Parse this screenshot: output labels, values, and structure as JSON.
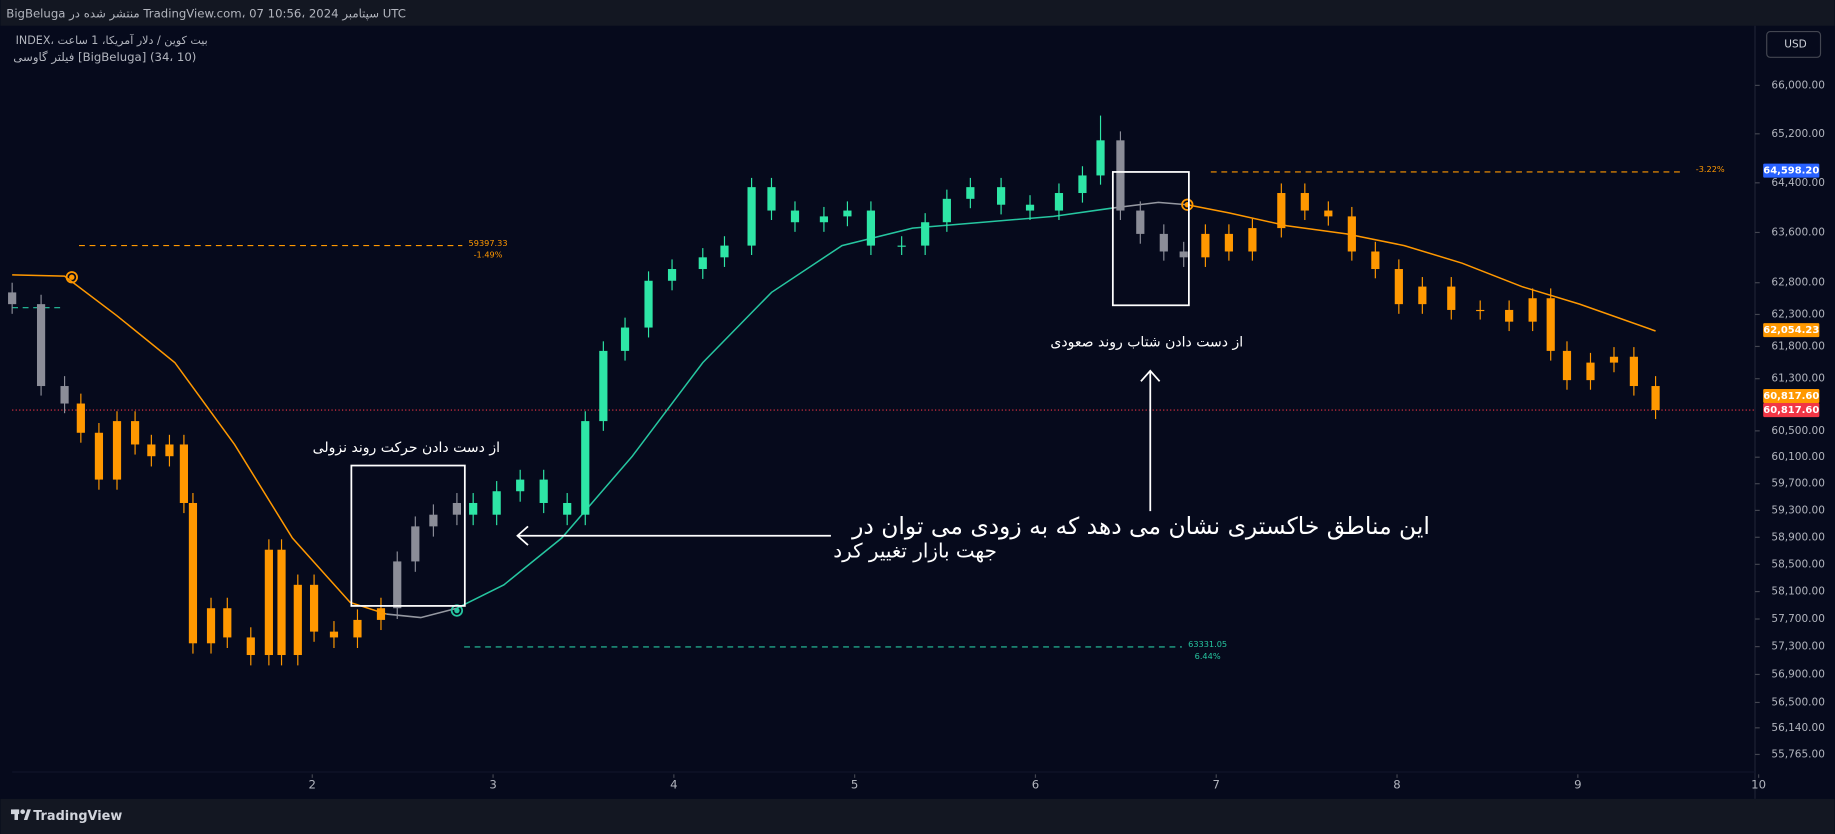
{
  "chart_data": {
    "type": "candlestick",
    "title": "BigBeluga منتشر شده در TradingView.com، 07 سپتامبر 2024 ،10:56 UTC",
    "legend_lines": [
      "INDEX، بیت کوین / دلار آمریکا، 1 ساعت",
      "فیلتر گاوسی [BigBeluga] (34، 10)"
    ],
    "currency": "USD",
    "brand": "TradingView",
    "log_scale": true,
    "grid": false,
    "xlim": [
      0.34,
      9.98
    ],
    "ylim": [
      55144,
      66940
    ],
    "xticks": [
      2,
      3,
      4,
      5,
      6,
      7,
      8,
      9,
      10
    ],
    "yticks": [
      {
        "value": 66000,
        "label": "66,000.00"
      },
      {
        "value": 65200,
        "label": "65,200.00"
      },
      {
        "value": 64400,
        "label": "64,400.00"
      },
      {
        "value": 63600,
        "label": "63,600.00"
      },
      {
        "value": 62800,
        "label": "62,800.00"
      },
      {
        "value": 62300,
        "label": "62,300.00"
      },
      {
        "value": 61800,
        "label": "61,800.00"
      },
      {
        "value": 61300,
        "label": "61,300.00"
      },
      {
        "value": 60500,
        "label": "60,500.00"
      },
      {
        "value": 60100,
        "label": "60,100.00"
      },
      {
        "value": 59700,
        "label": "59,700.00"
      },
      {
        "value": 59300,
        "label": "59,300.00"
      },
      {
        "value": 58900,
        "label": "58,900.00"
      },
      {
        "value": 58500,
        "label": "58,500.00"
      },
      {
        "value": 58100,
        "label": "58,100.00"
      },
      {
        "value": 57700,
        "label": "57,700.00"
      },
      {
        "value": 57300,
        "label": "57,300.00"
      },
      {
        "value": 56900,
        "label": "56,900.00"
      },
      {
        "value": 56500,
        "label": "56,500.00"
      },
      {
        "value": 56140,
        "label": "56,140.00"
      },
      {
        "value": 55765,
        "label": "55,765.00"
      }
    ],
    "candles": {
      "x": [
        0.34,
        0.5,
        0.63,
        0.72,
        0.82,
        0.92,
        1.02,
        1.11,
        1.21,
        1.29,
        1.34,
        1.44,
        1.53,
        1.66,
        1.76,
        1.83,
        1.92,
        2.01,
        2.12,
        2.25,
        2.38,
        2.47,
        2.57,
        2.67,
        2.8,
        2.89,
        3.02,
        3.15,
        3.28,
        3.41,
        3.51,
        3.61,
        3.73,
        3.86,
        3.99,
        4.16,
        4.28,
        4.43,
        4.54,
        4.67,
        4.83,
        4.96,
        5.09,
        5.26,
        5.39,
        5.51,
        5.64,
        5.81,
        5.97,
        6.13,
        6.26,
        6.36,
        6.47,
        6.58,
        6.71,
        6.82,
        6.94,
        7.07,
        7.2,
        7.36,
        7.49,
        7.62,
        7.75,
        7.88,
        8.01,
        8.14,
        8.3,
        8.46,
        8.62,
        8.75,
        8.85,
        8.94,
        9.07,
        9.2,
        9.31,
        9.43
      ],
      "open": [
        62647,
        62462,
        61187,
        60918,
        60471,
        59762,
        60649,
        60293,
        60115,
        60293,
        59411,
        57348,
        57857,
        57433,
        57179,
        58716,
        57179,
        58199,
        57517,
        57433,
        57687,
        57857,
        58543,
        59062,
        59236,
        59411,
        59236,
        59587,
        59762,
        59411,
        59236,
        60649,
        61731,
        62095,
        62831,
        63017,
        63203,
        63390,
        64330,
        63952,
        63764,
        63858,
        63952,
        63390,
        63390,
        63764,
        64141,
        64330,
        64046,
        63952,
        64235,
        64520,
        65093,
        63952,
        63577,
        63296,
        63203,
        63577,
        63296,
        63670,
        64235,
        63952,
        63858,
        63296,
        63017,
        62462,
        62739,
        62371,
        62371,
        62187,
        62555,
        61731,
        61278,
        61549,
        61640,
        61187
      ],
      "high": [
        62800,
        62610,
        61340,
        61070,
        60620,
        60800,
        60800,
        60440,
        60440,
        60440,
        59560,
        58010,
        58010,
        57580,
        58870,
        58870,
        58350,
        58350,
        57670,
        57840,
        58010,
        58690,
        59210,
        59390,
        59560,
        59560,
        59740,
        59910,
        59910,
        59560,
        60800,
        61880,
        62250,
        62980,
        63170,
        63350,
        63540,
        64480,
        64480,
        64100,
        64010,
        64100,
        64100,
        63540,
        63910,
        64290,
        64480,
        64480,
        64200,
        64390,
        64670,
        65500,
        65240,
        64100,
        63730,
        63450,
        63730,
        63730,
        63820,
        64390,
        64390,
        64100,
        64010,
        63450,
        63170,
        62890,
        62890,
        62520,
        62520,
        62710,
        62710,
        61880,
        61700,
        61790,
        61790,
        61340
      ],
      "low": [
        62310,
        61040,
        60770,
        60320,
        59610,
        59610,
        60140,
        59960,
        59960,
        59260,
        57200,
        57200,
        57280,
        57030,
        57030,
        57030,
        57030,
        57370,
        57280,
        57280,
        57540,
        57700,
        58390,
        58910,
        59080,
        59080,
        59080,
        59430,
        59260,
        59080,
        59080,
        60500,
        61580,
        61940,
        62680,
        62860,
        63050,
        63240,
        63800,
        63610,
        63610,
        63700,
        63240,
        63240,
        63240,
        63610,
        63990,
        63890,
        63800,
        63800,
        64080,
        64370,
        63800,
        63420,
        63150,
        63050,
        63050,
        63150,
        63150,
        63520,
        63800,
        63710,
        63150,
        62870,
        62310,
        62310,
        62220,
        62220,
        62040,
        62040,
        61580,
        61130,
        61130,
        61400,
        61040,
        60680
      ],
      "close": [
        62462,
        61187,
        60918,
        60471,
        59762,
        60649,
        60293,
        60115,
        60293,
        59411,
        57348,
        57857,
        57433,
        57179,
        58716,
        57179,
        58199,
        57517,
        57433,
        57687,
        57857,
        58543,
        59062,
        59236,
        59411,
        59236,
        59587,
        59762,
        59411,
        59236,
        60649,
        61731,
        62095,
        62831,
        63017,
        63203,
        63390,
        64330,
        63952,
        63764,
        63858,
        63952,
        63390,
        63390,
        63764,
        64141,
        64330,
        64046,
        63952,
        64235,
        64520,
        65093,
        63952,
        63577,
        63296,
        63203,
        63577,
        63296,
        63670,
        64235,
        63952,
        63858,
        63296,
        63017,
        62462,
        62739,
        62371,
        62371,
        62187,
        62555,
        61731,
        61278,
        61549,
        61640,
        61187,
        60817.6
      ],
      "colors": [
        "#8b8d98",
        "#8b8d98",
        "#8b8d98",
        "#ff9800",
        "#ff9800",
        "#ff9800",
        "#ff9800",
        "#ff9800",
        "#ff9800",
        "#ff9800",
        "#ff9800",
        "#ff9800",
        "#ff9800",
        "#ff9800",
        "#ff9800",
        "#ff9800",
        "#ff9800",
        "#ff9800",
        "#ff9800",
        "#ff9800",
        "#ff9800",
        "#8b8d98",
        "#8b8d98",
        "#8b8d98",
        "#8b8d98",
        "#2ee6a6",
        "#2ee6a6",
        "#2ee6a6",
        "#2ee6a6",
        "#2ee6a6",
        "#2ee6a6",
        "#2ee6a6",
        "#2ee6a6",
        "#2ee6a6",
        "#2ee6a6",
        "#2ee6a6",
        "#2ee6a6",
        "#2ee6a6",
        "#2ee6a6",
        "#2ee6a6",
        "#2ee6a6",
        "#2ee6a6",
        "#2ee6a6",
        "#2ee6a6",
        "#2ee6a6",
        "#2ee6a6",
        "#2ee6a6",
        "#2ee6a6",
        "#2ee6a6",
        "#2ee6a6",
        "#2ee6a6",
        "#2ee6a6",
        "#8b8d98",
        "#8b8d98",
        "#8b8d98",
        "#8b8d98",
        "#ff9800",
        "#ff9800",
        "#ff9800",
        "#ff9800",
        "#ff9800",
        "#ff9800",
        "#ff9800",
        "#ff9800",
        "#ff9800",
        "#ff9800",
        "#ff9800",
        "#ff9800",
        "#ff9800",
        "#ff9800",
        "#ff9800",
        "#ff9800",
        "#ff9800",
        "#ff9800",
        "#ff9800",
        "#ff9800"
      ]
    },
    "filter_lines": [
      {
        "color": "#ff9800",
        "x": [
          0.34,
          0.63,
          0.92,
          1.24,
          1.57,
          1.89,
          2.21,
          2.41
        ],
        "values": [
          62924,
          62905,
          62279,
          61549,
          60293,
          58889,
          57941,
          57772
        ]
      },
      {
        "color": "#9598a1",
        "x": [
          2.41,
          2.6,
          2.8
        ],
        "values": [
          57772,
          57721,
          57857
        ]
      },
      {
        "color": "#26c6a0",
        "x": [
          2.8,
          3.06,
          3.38,
          3.77,
          4.16,
          4.54,
          4.93,
          5.32,
          5.71,
          6.1,
          6.42
        ],
        "values": [
          57857,
          58199,
          58889,
          60115,
          61549,
          62647,
          63390,
          63670,
          63764,
          63858,
          63990
        ]
      },
      {
        "color": "#9598a1",
        "x": [
          6.42,
          6.68,
          6.84
        ],
        "values": [
          63990,
          64084,
          64046
        ]
      },
      {
        "color": "#ff9800",
        "x": [
          6.84,
          7.07,
          7.39,
          7.72,
          8.04,
          8.36,
          8.69,
          9.01,
          9.43
        ],
        "values": [
          64046,
          63914,
          63708,
          63577,
          63390,
          63110,
          62739,
          62462,
          62041
        ]
      }
    ],
    "levels": [
      {
        "value": 63390,
        "x": [
          0.71,
          2.83
        ],
        "color": "#ff9800",
        "labels": [
          "59397.33",
          "-1.49%"
        ]
      },
      {
        "value": 62407,
        "x": [
          0.34,
          0.63
        ],
        "color": "#26c6a0",
        "labels": []
      },
      {
        "value": 64577,
        "x": [
          6.97,
          9.59
        ],
        "color": "#ff9800",
        "labels": [
          "-3.22%"
        ]
      },
      {
        "value": 57296,
        "x": [
          2.84,
          6.81
        ],
        "color": "#26c6a0",
        "labels": [
          "63331.05",
          "6.44%"
        ]
      }
    ],
    "markers": [
      {
        "x": 0.67,
        "value": 62887,
        "color": "#ff9800"
      },
      {
        "x": 2.8,
        "value": 57823,
        "color": "#26c6a0"
      },
      {
        "x": 6.84,
        "value": 64046,
        "color": "#ff9800"
      }
    ],
    "price_line": {
      "value": 60817.6,
      "color": "#f23645"
    },
    "price_tags": [
      {
        "value": 64598.2,
        "label": "64,598.20",
        "color": "#2962ff"
      },
      {
        "value": 62054.23,
        "label": "62,054.23",
        "color": "#ff9800"
      },
      {
        "value": 60817.6,
        "label": "60,817.60",
        "color": "#ff9800"
      },
      {
        "value": 60817.6,
        "label": "60,817.60",
        "color": "#f23645"
      }
    ],
    "annotations": {
      "down": "از دست دادن حرکت روند نزولی",
      "up": "از دست دادن شتاب روند صعودی",
      "main": [
        "این مناطق خاکستری نشان می دهد که به زودی می توان در",
        "جهت بازار تغییر کرد"
      ]
    }
  }
}
